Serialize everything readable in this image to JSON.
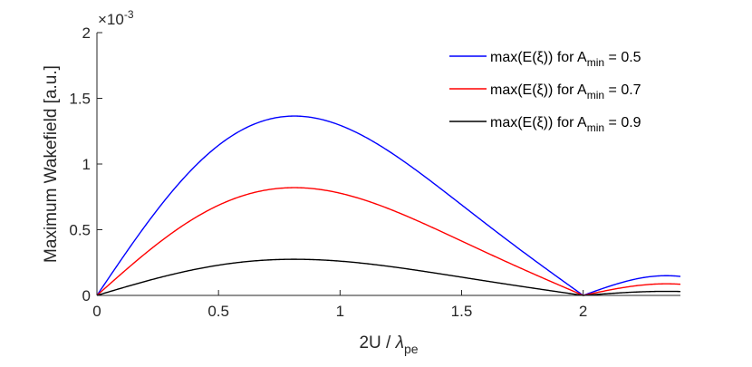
{
  "chart_data": {
    "type": "line",
    "title": "",
    "xlabel": {
      "main": "2U / ",
      "symbol": "λ",
      "sub": "pe"
    },
    "ylabel": "Maximum Wakefield [a.u.]",
    "xlim": [
      0,
      2.4
    ],
    "ylim": [
      0,
      2
    ],
    "y_exponent_label": {
      "base": "×10",
      "exp": "-3"
    },
    "x_ticks": [
      0,
      0.5,
      1,
      1.5,
      2
    ],
    "x_tick_labels": [
      "0",
      "0.5",
      "1",
      "1.5",
      "2"
    ],
    "y_ticks": [
      0,
      0.5,
      1,
      1.5,
      2
    ],
    "y_tick_labels": [
      "0",
      "0.5",
      "1",
      "1.5",
      "2"
    ],
    "grid": false,
    "legend_position": "top-right",
    "series": [
      {
        "name": "max(E(ξ)) for A_min = 0.5",
        "label_main": "max(E(ξ)) for A",
        "label_sub": "min",
        "label_tail": " = 0.5",
        "color": "#0000ff",
        "peak": 1.365,
        "tail": 0.17
      },
      {
        "name": "max(E(ξ)) for A_min = 0.7",
        "label_main": "max(E(ξ)) for A",
        "label_sub": "min",
        "label_tail": " = 0.7",
        "color": "#ff0000",
        "peak": 0.82,
        "tail": 0.1
      },
      {
        "name": "max(E(ξ)) for A_min = 0.9",
        "label_main": "max(E(ξ)) for A",
        "label_sub": "min",
        "label_tail": " = 0.9",
        "color": "#000000",
        "peak": 0.275,
        "tail": 0.035
      }
    ],
    "peak_x": 0.84,
    "zero_x": 2.0
  }
}
